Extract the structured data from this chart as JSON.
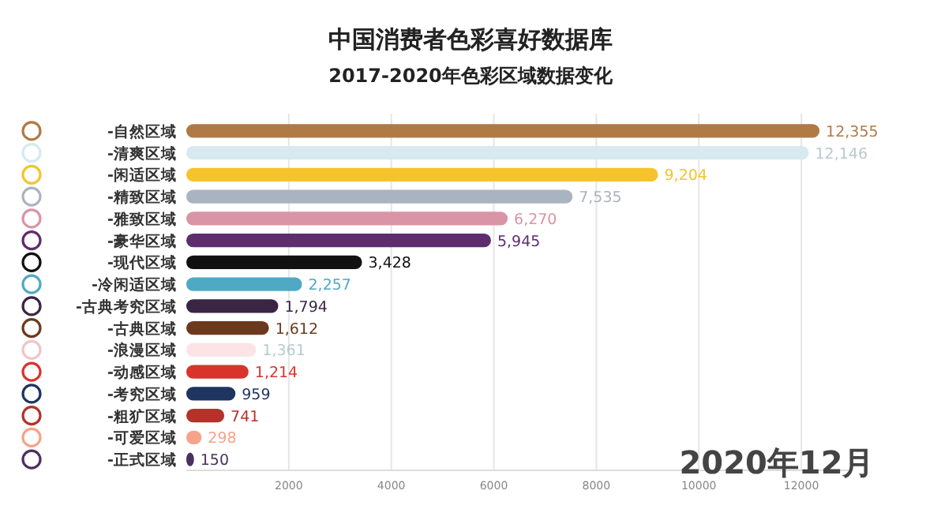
{
  "chart_data": {
    "type": "bar",
    "orientation": "horizontal",
    "title": "中国消费者色彩喜好数据库",
    "subtitle": "2017-2020年色彩区域数据变化",
    "categories": [
      "-自然区域",
      "-清爽区域",
      "-闲适区域",
      "-精致区域",
      "-雅致区域",
      "-豪华区域",
      "-现代区域",
      "-冷闲适区域",
      "-古典考究区域",
      "-古典区域",
      "-浪漫区域",
      "-动感区域",
      "-考究区域",
      "-粗犷区域",
      "-可爱区域",
      "-正式区域"
    ],
    "values": [
      12355,
      12146,
      9204,
      7535,
      6270,
      5945,
      3428,
      2257,
      1794,
      1612,
      1361,
      1214,
      959,
      741,
      298,
      150
    ],
    "value_labels": [
      "12,355",
      "12,146",
      "9,204",
      "7,535",
      "6,270",
      "5,945",
      "3,428",
      "2,257",
      "1,794",
      "1,612",
      "1,361",
      "1,214",
      "959",
      "741",
      "298",
      "150"
    ],
    "colors": [
      "#b07a45",
      "#d6eaf0",
      "#f5c42c",
      "#aab4c0",
      "#d995a5",
      "#5e2d6e",
      "#111111",
      "#4fa9c4",
      "#3a2545",
      "#6b3a1e",
      "#fbe3e6",
      "#d9342b",
      "#1e3560",
      "#b3332a",
      "#f5a38a",
      "#4a3060"
    ],
    "xlim": [
      0,
      13000
    ],
    "xticks": [
      2000,
      4000,
      6000,
      8000,
      10000,
      12000
    ],
    "grid": "x",
    "annotations": [
      "2020年12月"
    ]
  }
}
